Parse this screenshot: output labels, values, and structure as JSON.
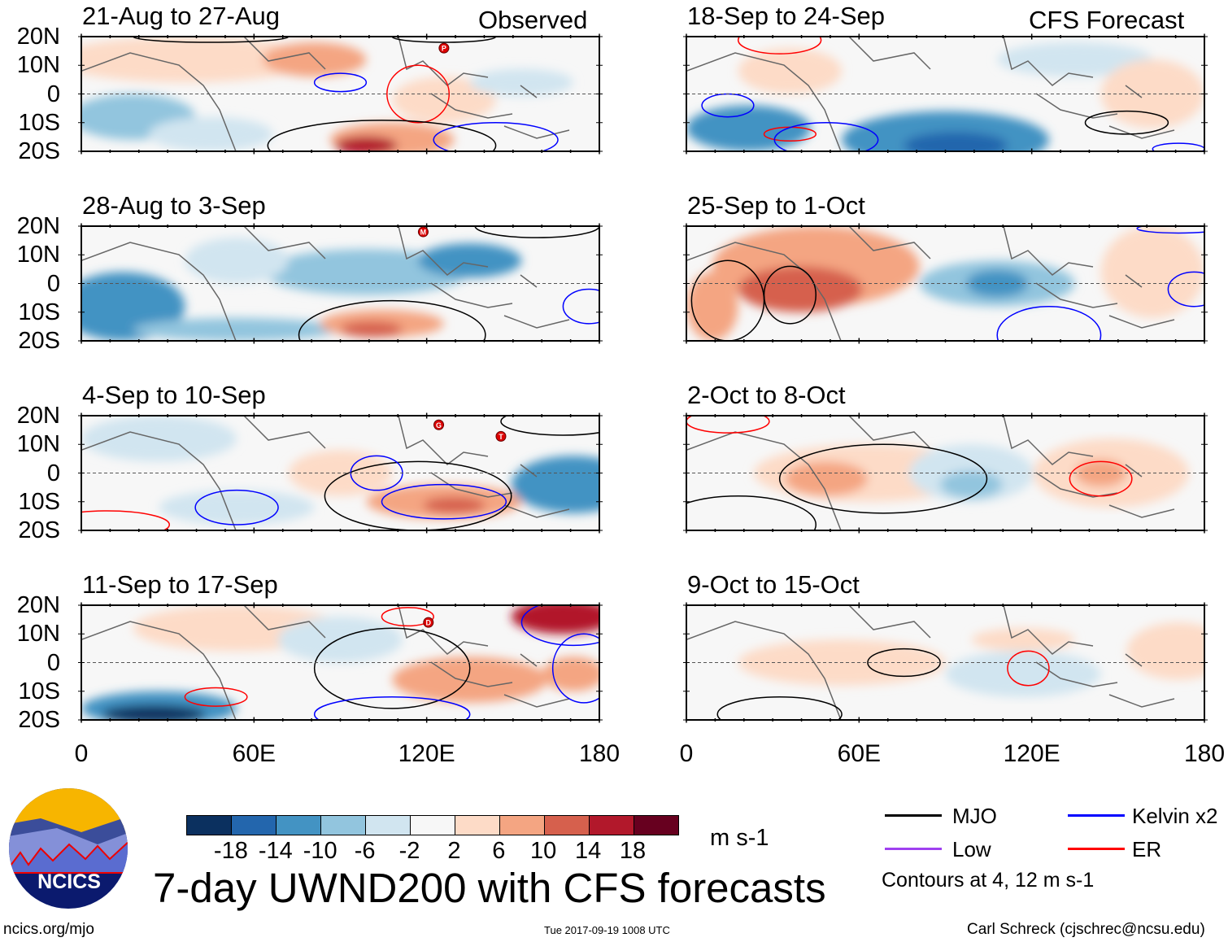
{
  "headers": {
    "observed": "Observed",
    "forecast": "CFS Forecast"
  },
  "panels_left": [
    {
      "title": "21-Aug to 27-Aug",
      "storms": [
        "P"
      ]
    },
    {
      "title": "28-Aug to 3-Sep",
      "storms": [
        "M"
      ]
    },
    {
      "title": "4-Sep to 10-Sep",
      "storms": [
        "G",
        "T"
      ]
    },
    {
      "title": "11-Sep to 17-Sep",
      "storms": [
        "D"
      ]
    }
  ],
  "panels_right": [
    {
      "title": "18-Sep to 24-Sep"
    },
    {
      "title": "25-Sep to 1-Oct"
    },
    {
      "title": "2-Oct to 8-Oct"
    },
    {
      "title": "9-Oct to 15-Oct"
    }
  ],
  "y_labels": [
    "20N",
    "10N",
    "0",
    "10S",
    "20S"
  ],
  "x_labels": [
    "0",
    "60E",
    "120E",
    "180"
  ],
  "colorbar": {
    "colors": [
      "#0b305f",
      "#2366ad",
      "#4393c3",
      "#92c5de",
      "#d1e5f0",
      "#f7f7f7",
      "#fddbc7",
      "#f4a582",
      "#d6604d",
      "#b2182b",
      "#67001f"
    ],
    "labels": [
      "-18",
      "-14",
      "-10",
      "-6",
      "-2",
      "2",
      "6",
      "10",
      "14",
      "18"
    ],
    "units": "m s-1"
  },
  "title": "7-day UWND200 with CFS forecasts",
  "logo_text": "NCICS",
  "legend": {
    "items": [
      {
        "label": "MJO",
        "color": "#000000"
      },
      {
        "label": "Kelvin x2",
        "color": "#0000ff"
      },
      {
        "label": "Low",
        "color": "#a040f0"
      },
      {
        "label": "ER",
        "color": "#ff0000"
      }
    ],
    "note": "Contours at 4, 12 m s-1"
  },
  "footer": {
    "url": "ncics.org/mjo",
    "timestamp": "Tue 2017-09-19 1008 UTC",
    "author": "Carl Schreck (cjschrec@ncsu.edu)"
  }
}
